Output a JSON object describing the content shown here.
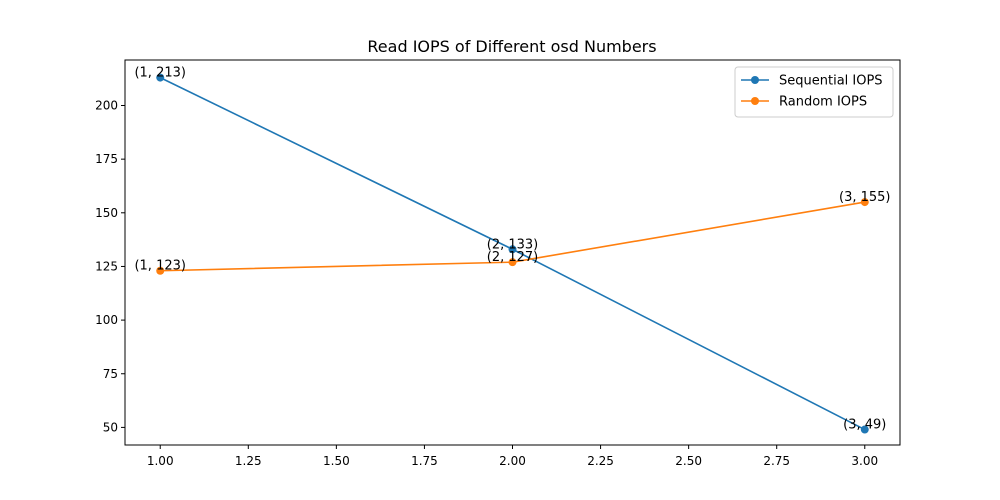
{
  "chart_data": {
    "type": "line",
    "title": "Read IOPS of Different osd Numbers",
    "xlabel": "",
    "ylabel": "",
    "xlim": [
      0.9,
      3.1
    ],
    "ylim": [
      41.8,
      221.2
    ],
    "xticks": [
      "1.00",
      "1.25",
      "1.50",
      "1.75",
      "2.00",
      "2.25",
      "2.50",
      "2.75",
      "3.00"
    ],
    "yticks": [
      "50",
      "75",
      "100",
      "125",
      "150",
      "175",
      "200"
    ],
    "legend_position": "top-right",
    "grid": false,
    "series": [
      {
        "name": "Sequential IOPS",
        "color": "#1f77b4",
        "x": [
          1,
          2,
          3
        ],
        "y": [
          213,
          133,
          49
        ],
        "labels": [
          "(1, 213)",
          "(2, 133)",
          "(3, 49)"
        ]
      },
      {
        "name": "Random IOPS",
        "color": "#ff7f0e",
        "x": [
          1,
          2,
          3
        ],
        "y": [
          123,
          127,
          155
        ],
        "labels": [
          "(1, 123)",
          "(2, 127)",
          "(3, 155)"
        ]
      }
    ]
  }
}
